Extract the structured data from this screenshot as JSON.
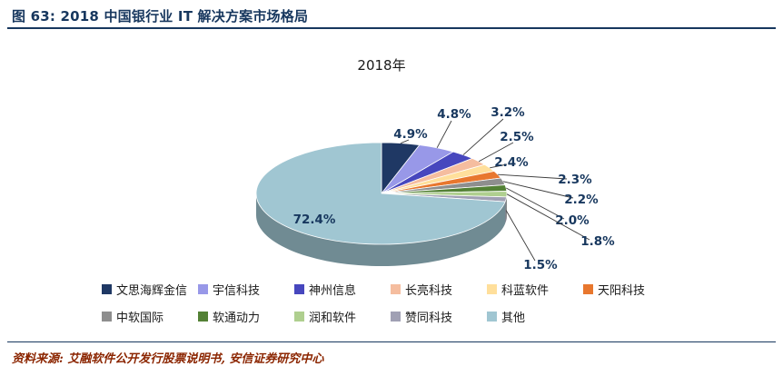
{
  "figure": {
    "caption": "图 63: 2018 中国银行业 IT 解决方案市场格局",
    "source": "资料来源: 艾融软件公开发行股票说明书, 安信证券研究中心"
  },
  "theme": {
    "accent": "#17375E",
    "source_color": "#8B2500",
    "label_color": "#17375E",
    "leader_line_color": "#3a3a3a"
  },
  "chart_data": {
    "type": "pie",
    "style": "3d",
    "title": "2018年",
    "legend_position": "bottom",
    "unit": "%",
    "slices": [
      {
        "label": "文思海辉金信",
        "value": 4.9,
        "color": "#1F3864"
      },
      {
        "label": "宇信科技",
        "value": 4.8,
        "color": "#9898E8"
      },
      {
        "label": "神州信息",
        "value": 3.2,
        "color": "#4747BE"
      },
      {
        "label": "长亮科技",
        "value": 2.5,
        "color": "#F5BD9F"
      },
      {
        "label": "科蓝软件",
        "value": 2.4,
        "color": "#FFDF9B"
      },
      {
        "label": "天阳科技",
        "value": 2.3,
        "color": "#E8772E"
      },
      {
        "label": "中软国际",
        "value": 2.2,
        "color": "#8E8E8E"
      },
      {
        "label": "软通动力",
        "value": 2.0,
        "color": "#538135"
      },
      {
        "label": "润和软件",
        "value": 1.8,
        "color": "#AFCF8F"
      },
      {
        "label": "赞同科技",
        "value": 1.5,
        "color": "#A0A0B4"
      },
      {
        "label": "其他",
        "value": 72.4,
        "color": "#A0C6D2"
      }
    ]
  }
}
